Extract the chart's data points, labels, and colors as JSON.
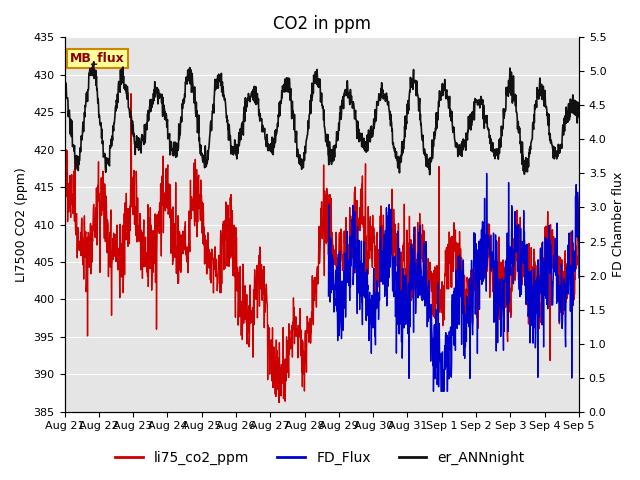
{
  "title": "CO2 in ppm",
  "ylabel_left": "LI7500 CO2 (ppm)",
  "ylabel_right": "FD Chamber flux",
  "ylim_left": [
    385,
    435
  ],
  "ylim_right": [
    0.0,
    5.5
  ],
  "yticks_left": [
    385,
    390,
    395,
    400,
    405,
    410,
    415,
    420,
    425,
    430,
    435
  ],
  "yticks_right": [
    0.0,
    0.5,
    1.0,
    1.5,
    2.0,
    2.5,
    3.0,
    3.5,
    4.0,
    4.5,
    5.0,
    5.5
  ],
  "xtick_labels": [
    "Aug 21",
    "Aug 22",
    "Aug 23",
    "Aug 24",
    "Aug 25",
    "Aug 26",
    "Aug 27",
    "Aug 28",
    "Aug 29",
    "Aug 30",
    "Aug 31",
    "Sep 1",
    "Sep 2",
    "Sep 3",
    "Sep 4",
    "Sep 5"
  ],
  "color_red": "#cc0000",
  "color_blue": "#0000cc",
  "color_black": "#111111",
  "legend_labels": [
    "li75_co2_ppm",
    "FD_Flux",
    "er_ANNnight"
  ],
  "mb_flux_label": "MB_flux",
  "mb_flux_bg": "#ffff99",
  "mb_flux_border": "#cc8800",
  "plot_bg": "#e5e5e5",
  "fig_bg": "#ffffff",
  "linewidth_red": 1.0,
  "linewidth_blue": 1.0,
  "linewidth_black": 1.2,
  "fontsize_title": 12,
  "fontsize_axis": 9,
  "fontsize_tick": 8,
  "fontsize_legend": 10
}
